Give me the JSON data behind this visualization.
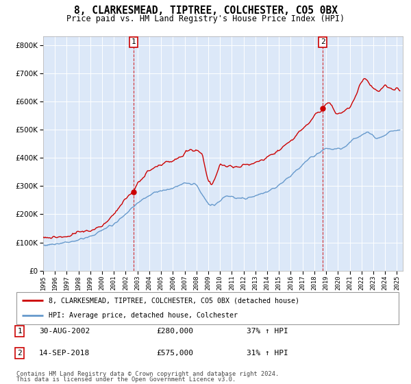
{
  "title": "8, CLARKESMEAD, TIPTREE, COLCHESTER, CO5 0BX",
  "subtitle": "Price paid vs. HM Land Registry's House Price Index (HPI)",
  "ylabel_ticks": [
    0,
    100000,
    200000,
    300000,
    400000,
    500000,
    600000,
    700000,
    800000
  ],
  "ylim": [
    0,
    830000
  ],
  "xlim_start": 1995.0,
  "xlim_end": 2025.5,
  "transactions": [
    {
      "label": "1",
      "year": 2002.67,
      "price": 280000,
      "date_str": "30-AUG-2002",
      "price_str": "£280,000",
      "hpi_str": "37% ↑ HPI"
    },
    {
      "label": "2",
      "year": 2018.71,
      "price": 575000,
      "date_str": "14-SEP-2018",
      "price_str": "£575,000",
      "hpi_str": "31% ↑ HPI"
    }
  ],
  "legend_line1": "8, CLARKESMEAD, TIPTREE, COLCHESTER, CO5 0BX (detached house)",
  "legend_line2": "HPI: Average price, detached house, Colchester",
  "footer1": "Contains HM Land Registry data © Crown copyright and database right 2024.",
  "footer2": "This data is licensed under the Open Government Licence v3.0.",
  "red_color": "#cc0000",
  "blue_color": "#6699cc",
  "background_color": "#dce8f8"
}
